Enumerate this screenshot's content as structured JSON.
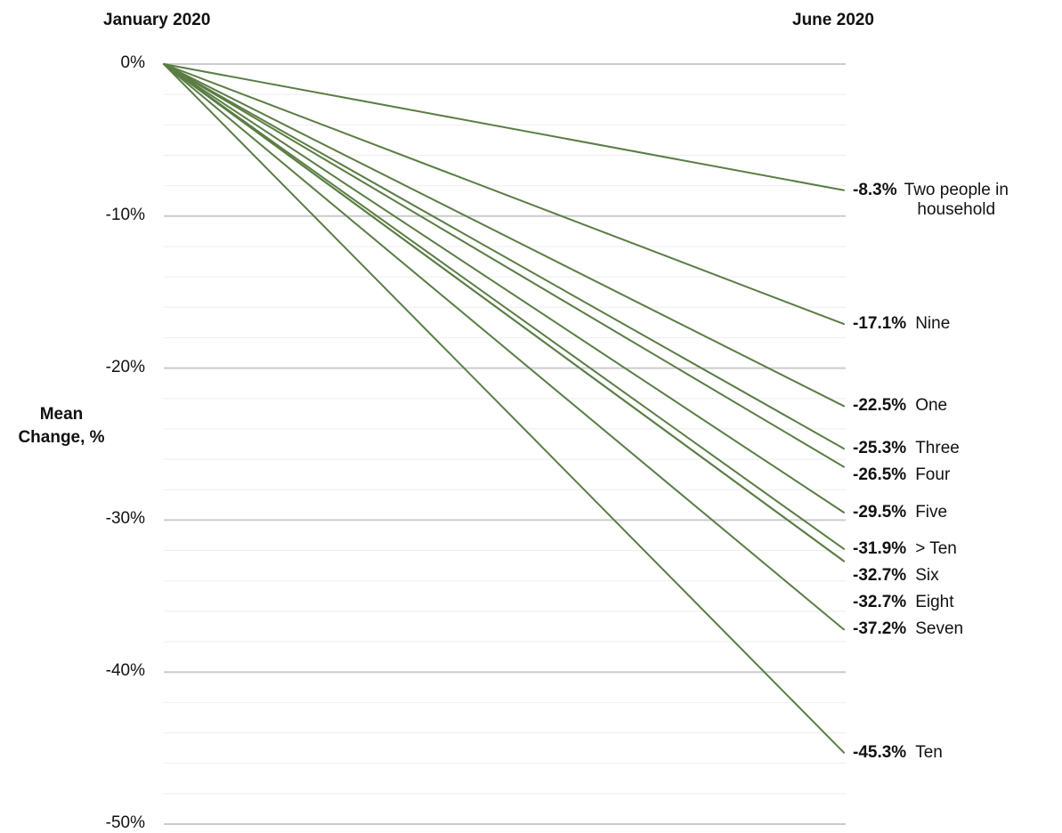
{
  "chart_data": {
    "type": "line",
    "x": [
      "January 2020",
      "June 2020"
    ],
    "ylabel": "Mean Change, %",
    "ylim": [
      -50,
      0
    ],
    "yticks": [
      "0%",
      "-10%",
      "-20%",
      "-30%",
      "-40%",
      "-50%"
    ],
    "grid": true,
    "line_color": "#5a7d44",
    "series": [
      {
        "name": "Two people in household",
        "label": "-8.3%",
        "values": [
          0,
          -8.3
        ]
      },
      {
        "name": "Nine",
        "label": "-17.1%",
        "values": [
          0,
          -17.1
        ]
      },
      {
        "name": "One",
        "label": "-22.5%",
        "values": [
          0,
          -22.5
        ]
      },
      {
        "name": "Three",
        "label": "-25.3%",
        "values": [
          0,
          -25.3
        ]
      },
      {
        "name": "Four",
        "label": "-26.5%",
        "values": [
          0,
          -26.5
        ]
      },
      {
        "name": "Five",
        "label": "-29.5%",
        "values": [
          0,
          -29.5
        ]
      },
      {
        "name": "> Ten",
        "label": "-31.9%",
        "values": [
          0,
          -31.9
        ]
      },
      {
        "name": "Six",
        "label": "-32.7%",
        "values": [
          0,
          -32.7
        ]
      },
      {
        "name": "Eight",
        "label": "-32.7%",
        "values": [
          0,
          -32.7
        ]
      },
      {
        "name": "Seven",
        "label": "-37.2%",
        "values": [
          0,
          -37.2
        ]
      },
      {
        "name": "Ten",
        "label": "-45.3%",
        "values": [
          0,
          -45.3
        ]
      }
    ]
  }
}
